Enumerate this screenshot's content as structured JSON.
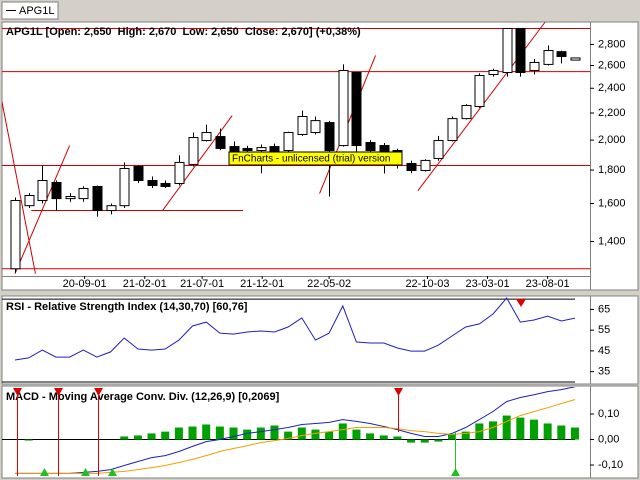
{
  "tab": "APG1L",
  "watermark": "FnCharts - unlicensed (trial) version",
  "chart_data": [
    {
      "type": "candlestick",
      "title": "APG1L [Open: 2,650  High: 2,670  Low: 2,650  Close: 2,670] (+0,38%)",
      "open": [
        1.272,
        1.588,
        1.617,
        1.723,
        1.628,
        1.628,
        1.699,
        1.561,
        1.588,
        1.823,
        1.735,
        1.717,
        1.717,
        1.836,
        1.997,
        2.025,
        1.955,
        1.942,
        1.928,
        1.955,
        1.928,
        2.04,
        2.054,
        2.127,
        1.962,
        2.537,
        1.983,
        1.962,
        1.928,
        1.842,
        1.797,
        1.875,
        1.997,
        2.157,
        2.251,
        2.519,
        2.537,
        2.962,
        2.555,
        2.61,
        2.73,
        2.65
      ],
      "high": [
        1.634,
        1.66,
        1.829,
        1.735,
        1.66,
        1.7,
        1.705,
        1.6,
        1.849,
        1.829,
        1.76,
        1.735,
        1.895,
        2.054,
        2.112,
        2.083,
        1.99,
        1.96,
        1.969,
        1.975,
        2.06,
        2.219,
        2.173,
        2.14,
        2.61,
        2.54,
        2.0,
        1.98,
        1.94,
        1.86,
        1.87,
        2.03,
        2.173,
        2.27,
        2.53,
        2.57,
        2.962,
        2.962,
        2.66,
        2.79,
        2.74,
        2.67
      ],
      "low": [
        1.254,
        1.575,
        1.6,
        1.561,
        1.61,
        1.61,
        1.528,
        1.54,
        1.575,
        1.72,
        1.69,
        1.69,
        1.705,
        1.823,
        1.99,
        1.93,
        1.9,
        1.92,
        1.78,
        1.9,
        1.91,
        2.03,
        2.04,
        1.64,
        1.955,
        1.9,
        1.915,
        1.778,
        1.81,
        1.78,
        1.79,
        1.86,
        1.99,
        2.15,
        2.24,
        2.5,
        2.5,
        2.5,
        2.52,
        2.6,
        2.62,
        2.65
      ],
      "close": [
        1.617,
        1.646,
        1.735,
        1.628,
        1.64,
        1.687,
        1.561,
        1.588,
        1.81,
        1.735,
        1.705,
        1.699,
        1.849,
        2.018,
        2.054,
        1.942,
        1.915,
        1.928,
        1.948,
        1.915,
        2.054,
        2.173,
        2.142,
        1.928,
        2.555,
        1.962,
        1.928,
        1.895,
        1.842,
        1.797,
        1.862,
        1.997,
        2.157,
        2.259,
        2.51,
        2.555,
        2.962,
        2.537,
        2.628,
        2.741,
        2.684,
        2.67
      ],
      "up_color": "#ffffff",
      "down_color": "#000000",
      "line_color": "#d00000",
      "log_scale": true,
      "xlim": [
        -0.95,
        42.1
      ],
      "xticks": [
        {
          "value": 5.1,
          "label": "20-09-01"
        },
        {
          "value": 9.5,
          "label": "21-02-01"
        },
        {
          "value": 13.7,
          "label": "21-07-01"
        },
        {
          "value": 18.1,
          "label": "21-12-01"
        },
        {
          "value": 23.0,
          "label": "22-05-02"
        },
        {
          "value": 30.2,
          "label": "22-10-03"
        },
        {
          "value": 34.6,
          "label": "23-03-01"
        },
        {
          "value": 39.0,
          "label": "23-08-01"
        }
      ],
      "ylim": [
        1.24,
        3.03
      ],
      "yticks": [
        {
          "value": 2.8,
          "label": "2,800"
        },
        {
          "value": 2.6,
          "label": "2,600"
        },
        {
          "value": 2.4,
          "label": "2,400"
        },
        {
          "value": 2.2,
          "label": "2,200"
        },
        {
          "value": 2.0,
          "label": "2,000"
        },
        {
          "value": 1.8,
          "label": "1,800"
        },
        {
          "value": 1.6,
          "label": "1,600"
        },
        {
          "value": 1.4,
          "label": "1,400"
        }
      ],
      "horizontal_lines": [
        2.962,
        2.545,
        1.829,
        1.272
      ],
      "trend_lines": [
        {
          "x": [
            -1,
            1.5
          ],
          "y": [
            2.315,
            1.25
          ]
        },
        {
          "x": [
            0,
            4
          ],
          "y": [
            1.25,
            1.962
          ]
        },
        {
          "x": [
            1.2,
            16.7
          ],
          "y": [
            1.561,
            1.561
          ]
        },
        {
          "x": [
            10.8,
            15.9
          ],
          "y": [
            1.561,
            2.18
          ]
        },
        {
          "x": [
            22.3,
            26.4
          ],
          "y": [
            1.657,
            2.694
          ]
        },
        {
          "x": [
            29.5,
            38.8
          ],
          "y": [
            1.674,
            3.026
          ]
        }
      ]
    },
    {
      "type": "line",
      "title": "RSI - Relative Strength Index (14,30,70) [60,76]",
      "color": "#2020c0",
      "values": [
        40.6,
        41.6,
        45.4,
        42.0,
        42.0,
        45.4,
        42.0,
        44.5,
        51.2,
        45.9,
        45.4,
        45.9,
        50.2,
        57.0,
        58.9,
        53.6,
        53.1,
        54.1,
        54.6,
        54.1,
        56.5,
        60.9,
        50.2,
        53.6,
        66.7,
        49.3,
        48.8,
        48.8,
        46.4,
        44.9,
        44.9,
        47.8,
        52.2,
        56.5,
        58.0,
        62.8,
        70.5,
        58.9,
        59.9,
        61.8,
        59.4,
        60.8
      ],
      "ylim": [
        29.5,
        71
      ],
      "yticks": [
        65,
        55,
        45,
        35
      ],
      "levels": [
        70,
        30
      ]
    },
    {
      "type": "macd",
      "title": "MACD - Moving Average Conv. Div. (12,26,9) [0,2069]",
      "histogram": {
        "color": "#00a000",
        "values": [
          0,
          -0.004,
          0,
          0,
          0,
          0,
          0,
          0,
          0.012,
          0.016,
          0.024,
          0.031,
          0.047,
          0.051,
          0.059,
          0.051,
          0.047,
          0.039,
          0.047,
          0.055,
          0.031,
          0.047,
          0.039,
          0.031,
          0.063,
          0.039,
          0.024,
          0.016,
          0.012,
          -0.012,
          -0.012,
          -0.008,
          0.02,
          0.031,
          0.063,
          0.071,
          0.094,
          0.086,
          0.078,
          0.063,
          0.055,
          0.047
        ]
      },
      "series": [
        {
          "color": "#2020c0",
          "values": [
            -0.133,
            -0.133,
            -0.133,
            -0.133,
            -0.133,
            -0.129,
            -0.125,
            -0.118,
            -0.102,
            -0.086,
            -0.071,
            -0.063,
            -0.047,
            -0.027,
            -0.008,
            0,
            0.012,
            0.024,
            0.031,
            0.039,
            0.047,
            0.059,
            0.063,
            0.067,
            0.078,
            0.071,
            0.063,
            0.051,
            0.039,
            0.024,
            0.012,
            0.012,
            0.024,
            0.047,
            0.078,
            0.11,
            0.149,
            0.165,
            0.176,
            0.188,
            0.196,
            0.207
          ]
        },
        {
          "color": "#f0a000",
          "values": [
            -0.133,
            -0.133,
            -0.133,
            -0.133,
            -0.133,
            -0.133,
            -0.133,
            -0.129,
            -0.125,
            -0.118,
            -0.11,
            -0.102,
            -0.09,
            -0.078,
            -0.063,
            -0.047,
            -0.035,
            -0.024,
            -0.012,
            -0.004,
            0.004,
            0.016,
            0.024,
            0.031,
            0.039,
            0.047,
            0.047,
            0.047,
            0.043,
            0.035,
            0.031,
            0.024,
            0.02,
            0.024,
            0.031,
            0.047,
            0.071,
            0.094,
            0.11,
            0.125,
            0.141,
            0.157
          ]
        }
      ],
      "ylim": [
        -0.143,
        0.206
      ],
      "yticks": [
        {
          "value": 0.1,
          "label": "0,10"
        },
        {
          "value": 0,
          "label": "0,00"
        },
        {
          "value": -0.1,
          "label": "-0,10"
        }
      ],
      "levels": [
        0
      ]
    }
  ]
}
